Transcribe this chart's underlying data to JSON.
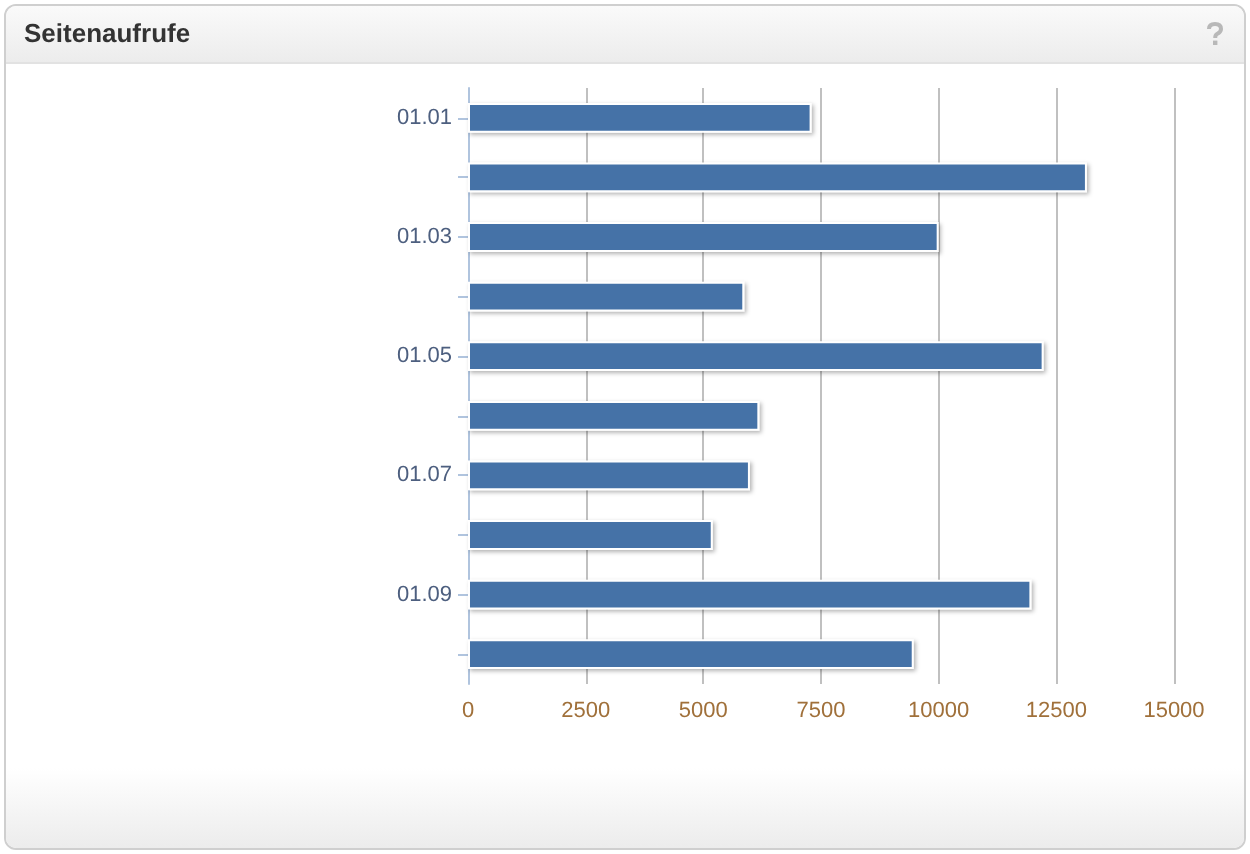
{
  "chart_data": {
    "type": "bar",
    "orientation": "horizontal",
    "title": "Seitenaufrufe",
    "categories": [
      "01.01",
      null,
      "01.03",
      null,
      "01.05",
      null,
      "01.07",
      null,
      "01.09",
      null
    ],
    "values": [
      7300,
      13150,
      10000,
      5870,
      12230,
      6190,
      5990,
      5200,
      11970,
      9470
    ],
    "color": "#4572a7",
    "xlim": [
      0,
      15000
    ],
    "xticks": [
      0,
      2500,
      5000,
      7500,
      10000,
      12500,
      15000
    ],
    "grid": "x"
  }
}
